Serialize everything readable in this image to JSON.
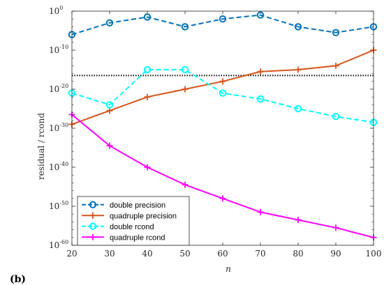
{
  "panel_label": "(b)",
  "chart_data": {
    "type": "line",
    "xlabel": "n",
    "ylabel": "residual / rcond",
    "y_scale": "log",
    "xlim": [
      20,
      100
    ],
    "ylim_exp": [
      -60,
      0
    ],
    "x_ticks": [
      "20",
      "30",
      "40",
      "50",
      "60",
      "70",
      "80",
      "90",
      "100"
    ],
    "y_ticks": [
      {
        "base": "10",
        "exp": "0",
        "value": 0
      },
      {
        "base": "10",
        "exp": "-10",
        "value": -10
      },
      {
        "base": "10",
        "exp": "-20",
        "value": -20
      },
      {
        "base": "10",
        "exp": "-30",
        "value": -30
      },
      {
        "base": "10",
        "exp": "-40",
        "value": -40
      },
      {
        "base": "10",
        "exp": "-50",
        "value": -50
      },
      {
        "base": "10",
        "exp": "-60",
        "value": -60
      }
    ],
    "x": [
      20,
      30,
      40,
      50,
      60,
      70,
      80,
      90,
      100
    ],
    "reference_line_exp": -16.5,
    "legend_position": "bottom-left",
    "series": [
      {
        "name": "double precision",
        "color": "#0072BD",
        "style": "dashed",
        "marker": "circle",
        "log10_values": [
          -6,
          -3,
          -1.5,
          -4,
          -2,
          -1,
          -4,
          -5.5,
          -4
        ]
      },
      {
        "name": "quadruple precision",
        "color": "#D95319",
        "style": "solid",
        "marker": "plus",
        "log10_values": [
          -29,
          -25.5,
          -22,
          -20,
          -18,
          -15.5,
          -15,
          -14,
          -10
        ]
      },
      {
        "name": "double rcond",
        "color": "#00FFFF",
        "style": "dashed",
        "marker": "circle",
        "log10_values": [
          -21,
          -24,
          -15,
          -15,
          -21,
          -22.5,
          -25,
          -27,
          -28.5
        ]
      },
      {
        "name": "quadruple rcond",
        "color": "#FF00FF",
        "style": "solid",
        "marker": "plus",
        "log10_values": [
          -26.5,
          -34.5,
          -40,
          -44.5,
          -48,
          -51.5,
          -53.5,
          -55.5,
          -58
        ]
      }
    ]
  }
}
